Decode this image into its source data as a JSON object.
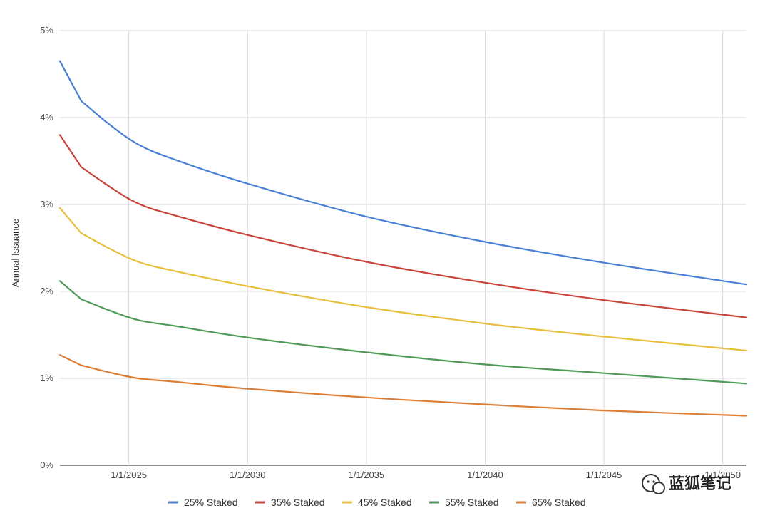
{
  "chart_data": {
    "type": "line",
    "title": "",
    "xlabel": "",
    "ylabel": "Annual Issuance",
    "x_ticks": [
      "1/1/2025",
      "1/1/2030",
      "1/1/2035",
      "1/1/2040",
      "1/1/2045",
      "1/1/2050"
    ],
    "y_ticks": [
      "0%",
      "1%",
      "2%",
      "3%",
      "4%",
      "5%"
    ],
    "xlim": [
      2022.1,
      2051.0
    ],
    "ylim": [
      0,
      5
    ],
    "grid": true,
    "legend_position": "bottom",
    "x": [
      2022.1,
      2023.0,
      2024.0,
      2025.4,
      2027.0,
      2030.0,
      2035.0,
      2040.0,
      2045.0,
      2051.0
    ],
    "series": [
      {
        "name": "25% Staked",
        "color": "#4a7fd6",
        "values": [
          4.65,
          4.19,
          3.96,
          3.69,
          3.51,
          3.24,
          2.86,
          2.57,
          2.33,
          2.08
        ]
      },
      {
        "name": "35% Staked",
        "color": "#c9443b",
        "values": [
          3.8,
          3.43,
          3.24,
          3.01,
          2.87,
          2.65,
          2.34,
          2.1,
          1.9,
          1.7
        ]
      },
      {
        "name": "45% Staked",
        "color": "#e8bf3c",
        "values": [
          2.96,
          2.67,
          2.52,
          2.34,
          2.23,
          2.06,
          1.82,
          1.63,
          1.48,
          1.32
        ]
      },
      {
        "name": "55% Staked",
        "color": "#4f9a56",
        "values": [
          2.12,
          1.91,
          1.8,
          1.67,
          1.6,
          1.47,
          1.3,
          1.16,
          1.06,
          0.94
        ]
      },
      {
        "name": "65% Staked",
        "color": "#dd7e35",
        "values": [
          1.27,
          1.15,
          1.08,
          1.0,
          0.96,
          0.88,
          0.78,
          0.7,
          0.63,
          0.57
        ]
      }
    ]
  },
  "watermark": {
    "text": "蓝狐笔记",
    "icon": "wechat-icon"
  }
}
